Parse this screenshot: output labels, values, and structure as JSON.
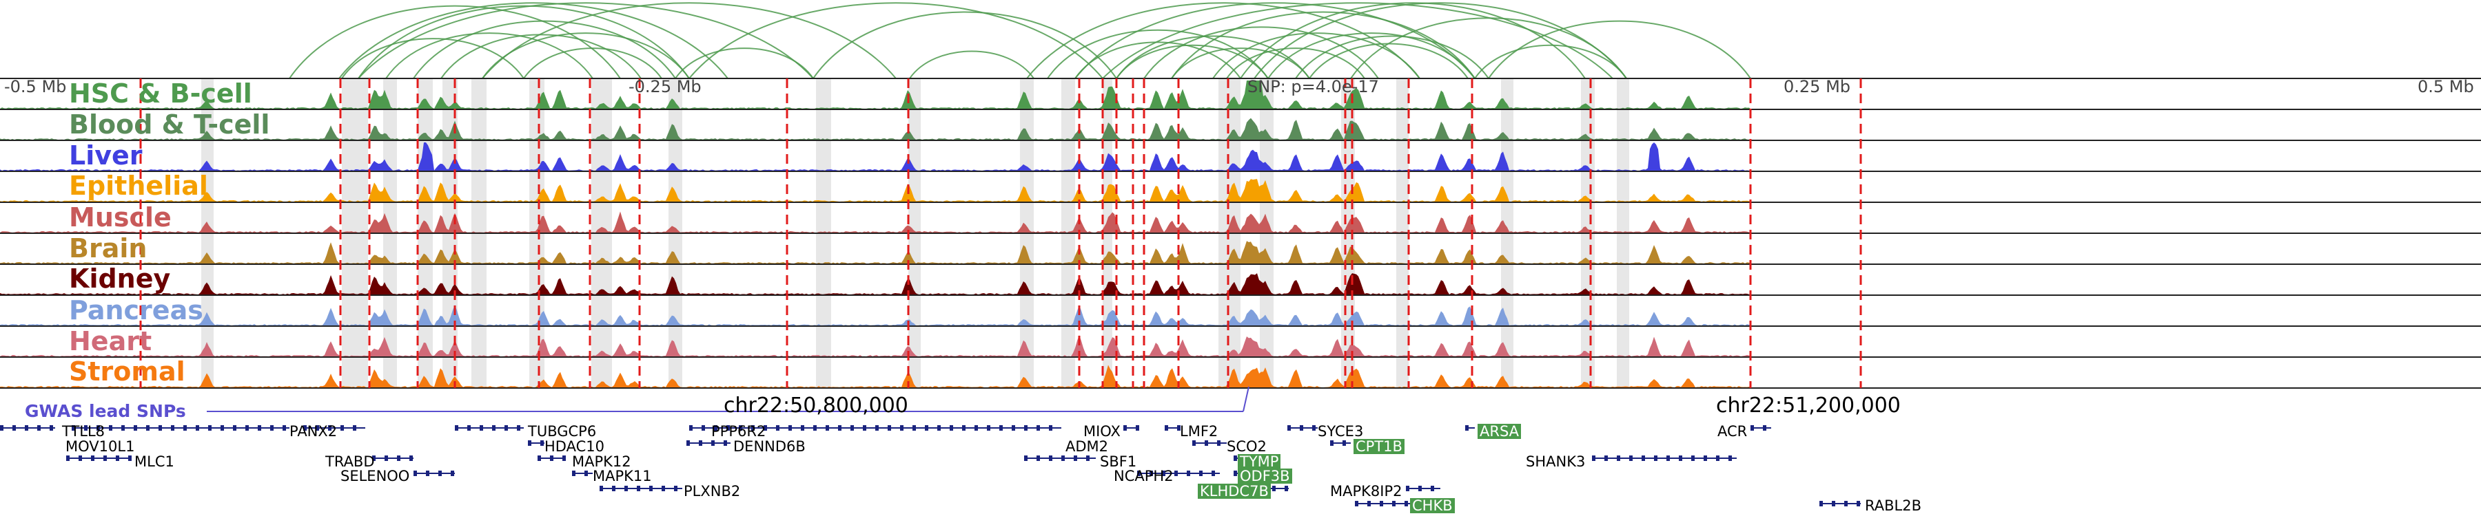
{
  "scale_labels": [
    "-0.5 Mb",
    "-0.25 Mb",
    "0.25 Mb",
    "0.5 Mb"
  ],
  "snp_annotation": "SNP: p=4.0e-17",
  "coordinate_labels": [
    "chr22:50,800,000",
    "chr22:51,200,000"
  ],
  "gwas_title": "GWAS lead SNPs",
  "colors": {
    "loop": "#4e9a4e",
    "highlight": "#dddddd",
    "red_marker": "#e21b1b",
    "gwas": "#5a4fcf",
    "gene_structure": "#1a237e",
    "gene_highlight": "#4a9a4a"
  },
  "tracks": [
    {
      "label": "HSC & B-cell",
      "color": "#4e9a4e"
    },
    {
      "label": "Blood & T-cell",
      "color": "#5a8c5a"
    },
    {
      "label": "Liver",
      "color": "#4040e0"
    },
    {
      "label": "Epithelial",
      "color": "#f5a000"
    },
    {
      "label": "Muscle",
      "color": "#c85a5a"
    },
    {
      "label": "Brain",
      "color": "#b8862a"
    },
    {
      "label": "Kidney",
      "color": "#6b0000"
    },
    {
      "label": "Pancreas",
      "color": "#7f9fdc"
    },
    {
      "label": "Heart",
      "color": "#d06a78"
    },
    {
      "label": "Stromal",
      "color": "#f57a10"
    }
  ],
  "genes": [
    {
      "name": "TTLL8",
      "highlighted": false
    },
    {
      "name": "MOV10L1",
      "highlighted": false
    },
    {
      "name": "MLC1",
      "highlighted": false
    },
    {
      "name": "PANX2",
      "highlighted": false
    },
    {
      "name": "TRABD",
      "highlighted": false
    },
    {
      "name": "SELENOO",
      "highlighted": false
    },
    {
      "name": "TUBGCP6",
      "highlighted": false
    },
    {
      "name": "HDAC10",
      "highlighted": false
    },
    {
      "name": "MAPK12",
      "highlighted": false
    },
    {
      "name": "MAPK11",
      "highlighted": false
    },
    {
      "name": "PLXNB2",
      "highlighted": false
    },
    {
      "name": "PPP6R2",
      "highlighted": false
    },
    {
      "name": "DENND6B",
      "highlighted": false
    },
    {
      "name": "MIOX",
      "highlighted": false
    },
    {
      "name": "ADM2",
      "highlighted": false
    },
    {
      "name": "SBF1",
      "highlighted": false
    },
    {
      "name": "NCAPH2",
      "highlighted": false
    },
    {
      "name": "LMF2",
      "highlighted": false
    },
    {
      "name": "SCO2",
      "highlighted": false
    },
    {
      "name": "TYMP",
      "highlighted": true
    },
    {
      "name": "ODF3B",
      "highlighted": true
    },
    {
      "name": "KLHDC7B",
      "highlighted": true
    },
    {
      "name": "SYCE3",
      "highlighted": false
    },
    {
      "name": "CPT1B",
      "highlighted": true
    },
    {
      "name": "MAPK8IP2",
      "highlighted": false
    },
    {
      "name": "CHKB",
      "highlighted": true
    },
    {
      "name": "ARSA",
      "highlighted": true
    },
    {
      "name": "SHANK3",
      "highlighted": false
    },
    {
      "name": "ACR",
      "highlighted": false
    },
    {
      "name": "RABL2B",
      "highlighted": false
    }
  ]
}
